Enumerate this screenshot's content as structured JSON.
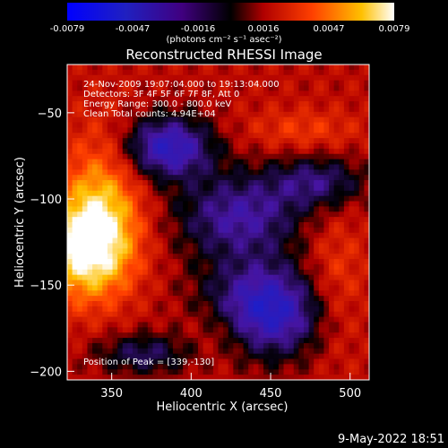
{
  "colorbar": {
    "tick_labels": [
      "-0.0079",
      "-0.0047",
      "-0.0016",
      "0.0016",
      "0.0047",
      "0.0079"
    ],
    "units_label": "(photons cm⁻² s⁻¹ asec⁻²)"
  },
  "chart_data": {
    "type": "heatmap",
    "title": "Reconstructed RHESSI Image",
    "xlabel": "Heliocentric X (arcsec)",
    "ylabel": "Heliocentric Y (arcsec)",
    "xlim": [
      322,
      512
    ],
    "ylim": [
      -205,
      -22
    ],
    "x_ticks": [
      350,
      400,
      450,
      500
    ],
    "y_ticks": [
      -50,
      -100,
      -150,
      -200
    ],
    "color_range": [
      -0.0079,
      0.0079
    ],
    "colormap": "rainbow-blue-purple-red-yellow-white",
    "peak": [
      339,
      -130
    ],
    "annotations": {
      "time_range": "24-Nov-2009 19:07:04.000 to 19:13:04.000",
      "detectors": "Detectors: 3F 4F 5F 6F 7F 8F, Att 0",
      "energy_range": "Energy Range: 300.0 - 800.0 keV",
      "clean_counts": "Clean     Total counts: 4.94E+04",
      "peak_position": "Position of Peak = [339,-130]"
    }
  },
  "footer": {
    "timestamp": "9-May-2022 18:51"
  },
  "colors": {
    "background": "#000000",
    "axis": "#ffffff"
  }
}
